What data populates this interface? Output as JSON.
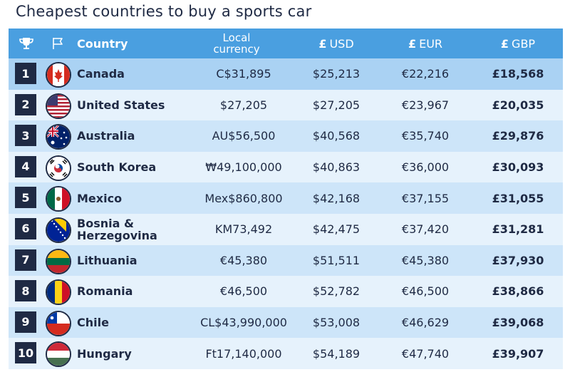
{
  "title": "Cheapest countries to buy a sports car",
  "header": {
    "country": "Country",
    "local_line1": "Local",
    "local_line2": "currency",
    "usd_symbol": "£",
    "usd": "USD",
    "eur_symbol": "£",
    "eur": "EUR",
    "gbp_symbol": "£",
    "gbp": "GBP",
    "trophy_icon": "trophy-icon",
    "flag_icon": "flag-icon"
  },
  "colors": {
    "header_bg": "#4a9fe0",
    "row_highlight": "#aad2f3",
    "row_a": "#cde5f9",
    "row_b": "#e6f2fc",
    "rank_bg": "#1f2a44"
  },
  "chart_data": {
    "type": "table",
    "columns": [
      "Country",
      "Local currency",
      "USD",
      "EUR",
      "GBP"
    ],
    "rows": [
      {
        "rank": "1",
        "country": "Canada",
        "local": "C$31,895",
        "usd": "$25,213",
        "eur": "€22,216",
        "gbp": "£18,568",
        "flag": "canada-flag-icon"
      },
      {
        "rank": "2",
        "country": "United States",
        "local": "$27,205",
        "usd": "$27,205",
        "eur": "€23,967",
        "gbp": "£20,035",
        "flag": "usa-flag-icon"
      },
      {
        "rank": "3",
        "country": "Australia",
        "local": "AU$56,500",
        "usd": "$40,568",
        "eur": "€35,740",
        "gbp": "£29,876",
        "flag": "australia-flag-icon"
      },
      {
        "rank": "4",
        "country": "South Korea",
        "local": "₩49,100,000",
        "usd": "$40,863",
        "eur": "€36,000",
        "gbp": "£30,093",
        "flag": "south-korea-flag-icon"
      },
      {
        "rank": "5",
        "country": "Mexico",
        "local": "Mex$860,800",
        "usd": "$42,168",
        "eur": "€37,155",
        "gbp": "£31,055",
        "flag": "mexico-flag-icon"
      },
      {
        "rank": "6",
        "country": "Bosnia & Herzegovina",
        "local": "KM73,492",
        "usd": "$42,475",
        "eur": "€37,420",
        "gbp": "£31,281",
        "flag": "bosnia-flag-icon"
      },
      {
        "rank": "7",
        "country": "Lithuania",
        "local": "€45,380",
        "usd": "$51,511",
        "eur": "€45,380",
        "gbp": "£37,930",
        "flag": "lithuania-flag-icon"
      },
      {
        "rank": "8",
        "country": "Romania",
        "local": "€46,500",
        "usd": "$52,782",
        "eur": "€46,500",
        "gbp": "£38,866",
        "flag": "romania-flag-icon"
      },
      {
        "rank": "9",
        "country": "Chile",
        "local": "CL$43,990,000",
        "usd": "$53,008",
        "eur": "€46,629",
        "gbp": "£39,068",
        "flag": "chile-flag-icon"
      },
      {
        "rank": "10",
        "country": "Hungary",
        "local": "Ft17,140,000",
        "usd": "$54,189",
        "eur": "€47,740",
        "gbp": "£39,907",
        "flag": "hungary-flag-icon"
      }
    ]
  }
}
